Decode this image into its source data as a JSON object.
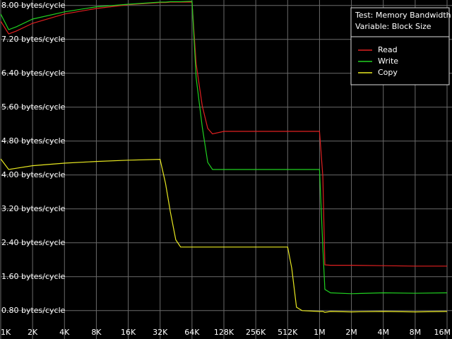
{
  "chart_data": {
    "type": "line",
    "annotations": [
      "Test: Memory Bandwidth",
      "Variable: Block Size"
    ],
    "x": [
      1,
      1.19,
      1.41,
      2,
      4,
      8,
      16,
      32,
      36,
      40,
      45,
      50,
      64,
      70,
      80,
      90,
      100,
      128,
      256,
      512,
      560,
      620,
      700,
      1024,
      1100,
      1150,
      1300,
      2048,
      4096,
      8192,
      16384
    ],
    "series": [
      {
        "name": "Read",
        "color": "#e02020",
        "values": [
          7.63,
          7.33,
          7.4,
          7.58,
          7.8,
          7.93,
          8.02,
          8.07,
          8.07,
          8.08,
          8.08,
          8.08,
          8.08,
          6.63,
          5.63,
          5.1,
          4.97,
          5.03,
          5.03,
          5.03,
          5.03,
          5.03,
          5.03,
          5.03,
          3.97,
          1.88,
          1.87,
          1.87,
          1.86,
          1.85,
          1.85
        ]
      },
      {
        "name": "Write",
        "color": "#20d020",
        "values": [
          7.8,
          7.43,
          7.5,
          7.68,
          7.85,
          7.97,
          8.03,
          8.08,
          8.08,
          8.09,
          8.09,
          8.09,
          8.1,
          6.3,
          5.13,
          4.3,
          4.13,
          4.13,
          4.13,
          4.13,
          4.13,
          4.13,
          4.13,
          4.13,
          2.3,
          1.3,
          1.22,
          1.2,
          1.22,
          1.21,
          1.22
        ]
      },
      {
        "name": "Copy",
        "color": "#e8e820",
        "values": [
          4.38,
          4.13,
          4.16,
          4.22,
          4.28,
          4.32,
          4.35,
          4.37,
          3.8,
          3.13,
          2.47,
          2.3,
          2.3,
          2.3,
          2.3,
          2.3,
          2.3,
          2.3,
          2.3,
          2.3,
          1.8,
          0.88,
          0.8,
          0.78,
          0.78,
          0.76,
          0.78,
          0.77,
          0.78,
          0.77,
          0.78
        ]
      }
    ],
    "xlim": [
      1,
      16384
    ],
    "xscale": "log",
    "xticks": [
      {
        "value": 1,
        "label": "1K"
      },
      {
        "value": 2,
        "label": "2K"
      },
      {
        "value": 4,
        "label": "4K"
      },
      {
        "value": 8,
        "label": "8K"
      },
      {
        "value": 16,
        "label": "16K"
      },
      {
        "value": 32,
        "label": "32K"
      },
      {
        "value": 64,
        "label": "64K"
      },
      {
        "value": 128,
        "label": "128K"
      },
      {
        "value": 256,
        "label": "256K"
      },
      {
        "value": 512,
        "label": "512K"
      },
      {
        "value": 1024,
        "label": "1M"
      },
      {
        "value": 2048,
        "label": "2M"
      },
      {
        "value": 4096,
        "label": "4M"
      },
      {
        "value": 8192,
        "label": "8M"
      },
      {
        "value": 16384,
        "label": "16M"
      }
    ],
    "ylim": [
      0.13,
      8.13
    ],
    "yticks": [
      {
        "value": 0.8,
        "label": "0.80 bytes/cycle"
      },
      {
        "value": 1.6,
        "label": "1.60 bytes/cycle"
      },
      {
        "value": 2.4,
        "label": "2.40 bytes/cycle"
      },
      {
        "value": 3.2,
        "label": "3.20 bytes/cycle"
      },
      {
        "value": 4,
        "label": "4.00 bytes/cycle"
      },
      {
        "value": 4.8,
        "label": "4.80 bytes/cycle"
      },
      {
        "value": 5.6,
        "label": "5.60 bytes/cycle"
      },
      {
        "value": 6.4,
        "label": "6.40 bytes/cycle"
      },
      {
        "value": 7.2,
        "label": "7.20 bytes/cycle"
      },
      {
        "value": 8,
        "label": "8.00 bytes/cycle"
      }
    ],
    "grid": true
  }
}
